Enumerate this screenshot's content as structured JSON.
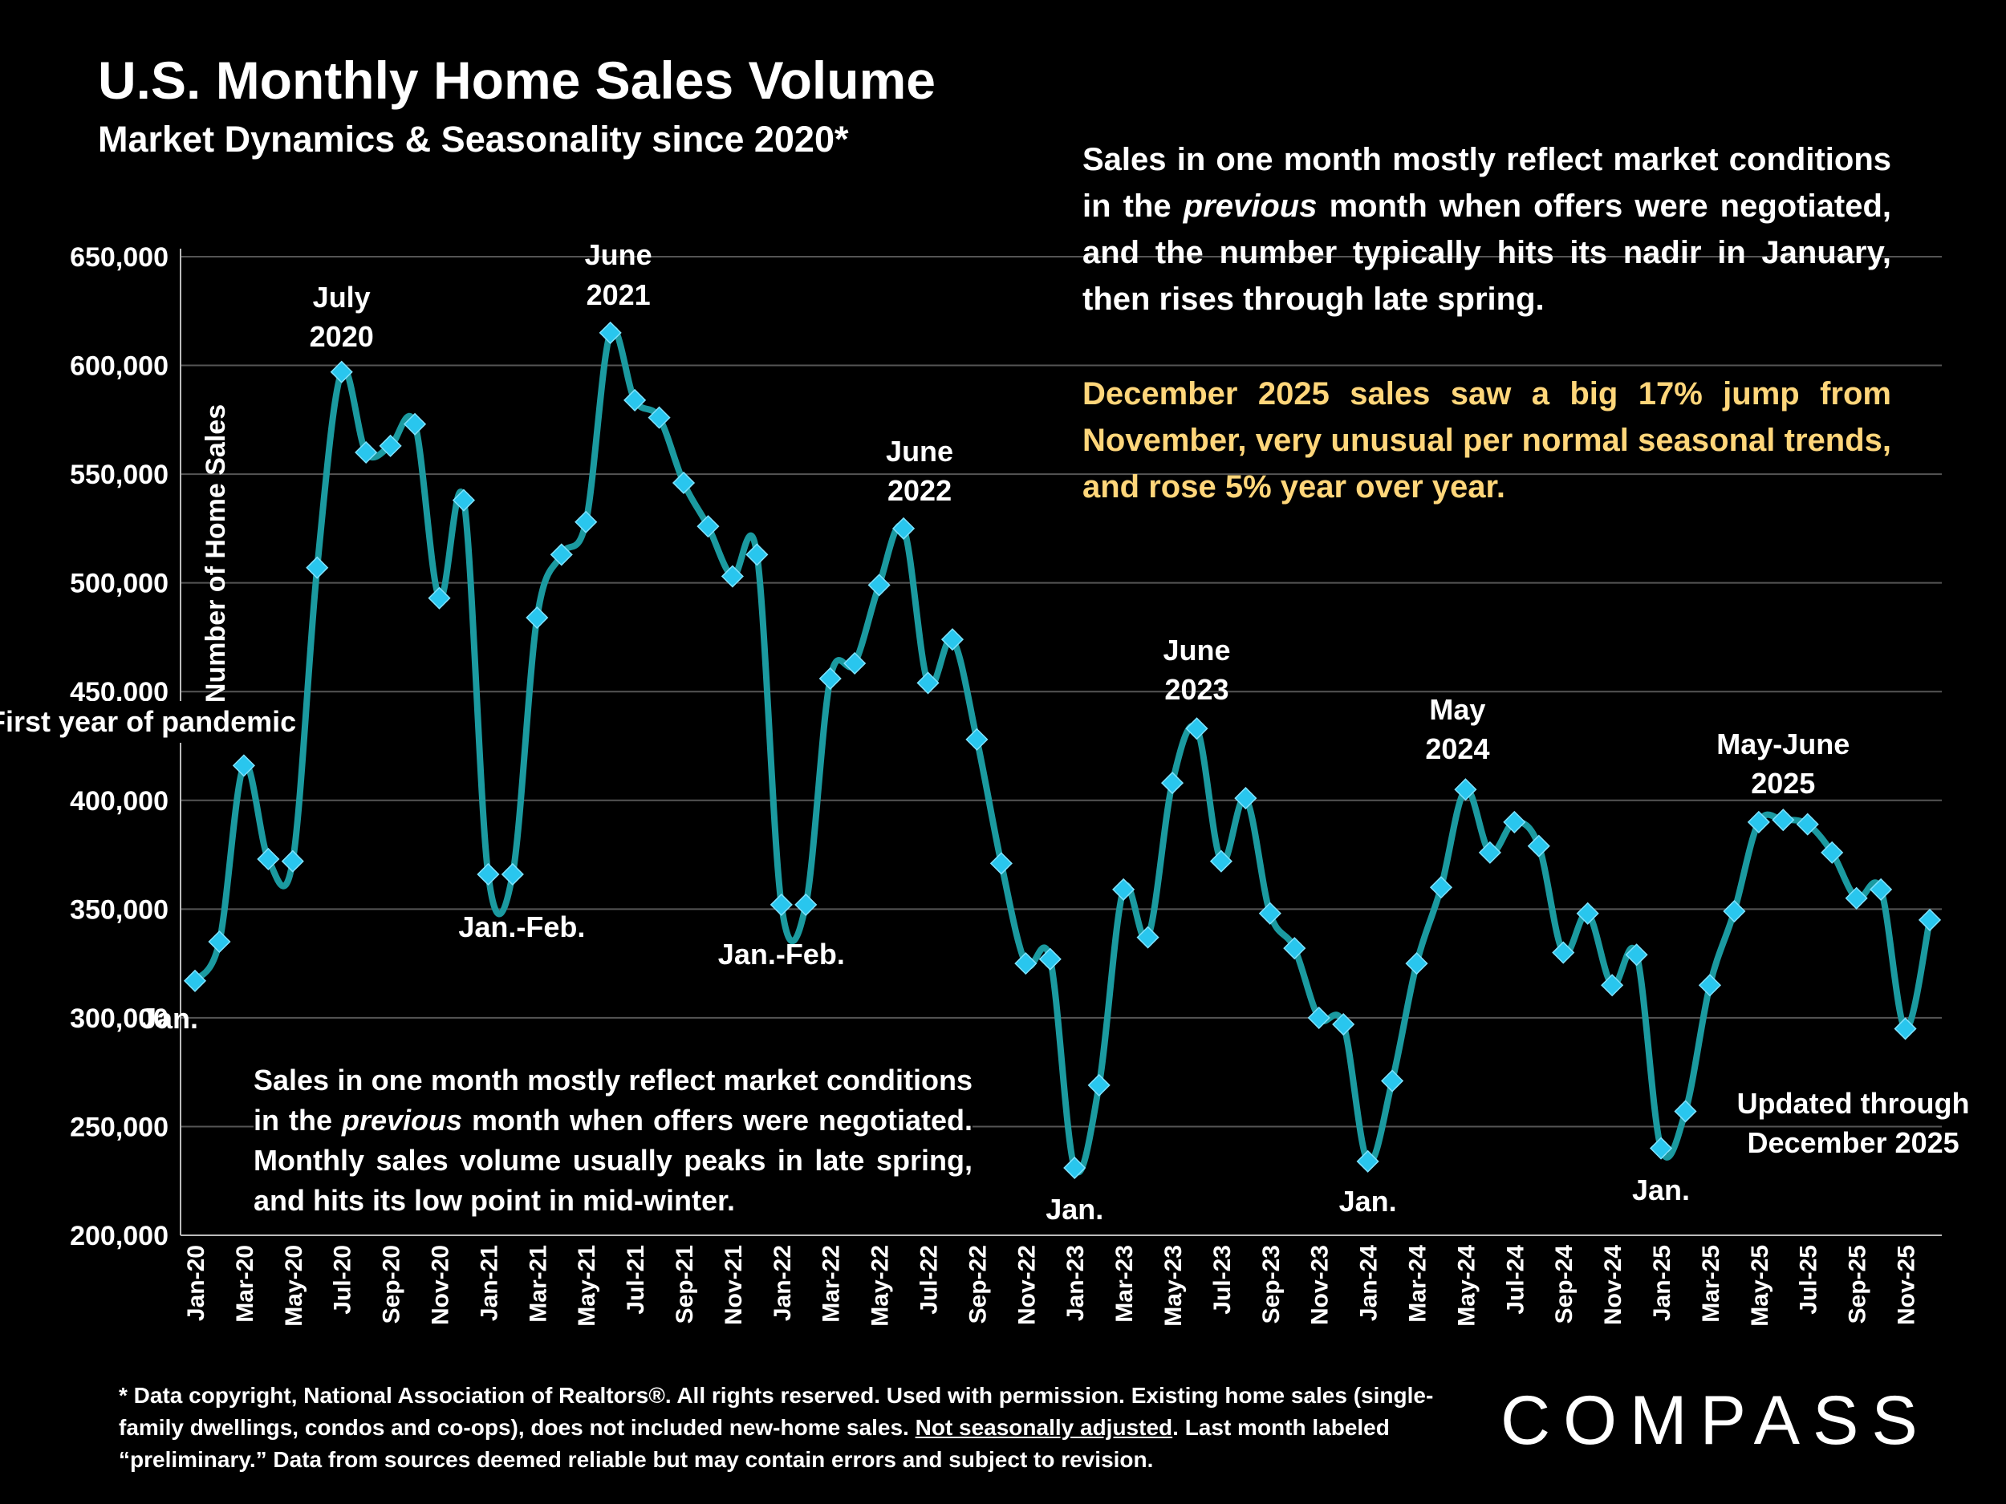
{
  "title": "U.S. Monthly Home Sales Volume",
  "subtitle": "Market Dynamics & Seasonality since 2020*",
  "note_top": {
    "part1": "Sales in one month mostly reflect market conditions in the ",
    "italic": "previous",
    "part2": " month when offers were negotiated, and the number typically hits its nadir in January, then rises through late spring."
  },
  "note_top_highlight": "December 2025 sales saw a big 17% jump from November, very unusual per normal seasonal trends, and rose 5% year over year.",
  "note_bottom": {
    "part1": "Sales in one month mostly reflect market conditions in the ",
    "italic": "previous",
    "part2": " month when offers were negotiated. Monthly sales volume usually peaks in late spring, and hits its low point in mid-winter."
  },
  "footnote": {
    "part1": "* Data copyright, National Association of Realtors®. All rights reserved. Used with permission. Existing home sales (single-family dwellings, condos and co-ops), does not included new-home sales. ",
    "underlined": "Not seasonally adjusted",
    "part2": ". Last month labeled “preliminary.” Data from sources deemed reliable but may contain errors and subject to revision."
  },
  "logo": "COMPASS",
  "colors": {
    "line": "#1b9aa0",
    "marker": "#29c6ee",
    "background": "#000000",
    "highlight": "#ffd67a"
  },
  "chart_data": {
    "type": "line",
    "title": "U.S. Monthly Home Sales Volume",
    "ylabel": "Number of Home Sales",
    "xlabel": "",
    "ylim": [
      200000,
      650000
    ],
    "yticks": [
      200000,
      250000,
      300000,
      350000,
      400000,
      450000,
      500000,
      550000,
      600000,
      650000
    ],
    "ytick_labels": [
      "200,000",
      "250,000",
      "300,000",
      "350,000",
      "400,000",
      "450,000",
      "500,000",
      "550,000",
      "600,000",
      "650,000"
    ],
    "grid": true,
    "x_tick_labels": [
      "Jan-20",
      "Mar-20",
      "May-20",
      "Jul-20",
      "Sep-20",
      "Nov-20",
      "Jan-21",
      "Mar-21",
      "May-21",
      "Jul-21",
      "Sep-21",
      "Nov-21",
      "Jan-22",
      "Mar-22",
      "May-22",
      "Jul-22",
      "Sep-22",
      "Nov-22",
      "Jan-23",
      "Mar-23",
      "May-23",
      "Jul-23",
      "Sep-23",
      "Nov-23",
      "Jan-24",
      "Mar-24",
      "May-24",
      "Jul-24",
      "Sep-24",
      "Nov-24",
      "Jan-25",
      "Mar-25",
      "May-25",
      "Jul-25",
      "Sep-25",
      "Nov-25"
    ],
    "series": [
      {
        "name": "Monthly Home Sales",
        "values": [
          317000,
          335000,
          416000,
          373000,
          372000,
          507000,
          597000,
          560000,
          563000,
          573000,
          493000,
          538000,
          366000,
          366000,
          484000,
          513000,
          528000,
          615000,
          584000,
          576000,
          546000,
          526000,
          503000,
          513000,
          352000,
          352000,
          456000,
          463000,
          499000,
          525000,
          454000,
          474000,
          428000,
          371000,
          325000,
          327000,
          231000,
          269000,
          359000,
          337000,
          408000,
          433000,
          372000,
          401000,
          348000,
          332000,
          300000,
          297000,
          234000,
          271000,
          325000,
          360000,
          405000,
          376000,
          390000,
          379000,
          330000,
          348000,
          315000,
          329000,
          240000,
          257000,
          315000,
          349000,
          390000,
          391000,
          389000,
          376000,
          355000,
          359000,
          295000,
          345000
        ]
      }
    ],
    "annotations": [
      {
        "text": "Jan.",
        "index": 0
      },
      {
        "text": "July",
        "text2": "2020",
        "index": 6
      },
      {
        "text": "First year of pandemic",
        "index": 9
      },
      {
        "text": "Jan.-Feb.",
        "index": 12
      },
      {
        "text": "June",
        "text2": "2021",
        "index": 17
      },
      {
        "text": "Jan.-Feb.",
        "index": 24
      },
      {
        "text": "June",
        "text2": "2022",
        "index": 29
      },
      {
        "text": "Jan.",
        "index": 36
      },
      {
        "text": "June",
        "text2": "2023",
        "index": 41
      },
      {
        "text": "Jan.",
        "index": 48
      },
      {
        "text": "May",
        "text2": "2024",
        "index": 52
      },
      {
        "text": "Jan.",
        "index": 60
      },
      {
        "text": "May-June",
        "text2": "2025",
        "index": 65
      },
      {
        "text": "Updated through",
        "text2": "December 2025",
        "index": 70
      }
    ]
  }
}
